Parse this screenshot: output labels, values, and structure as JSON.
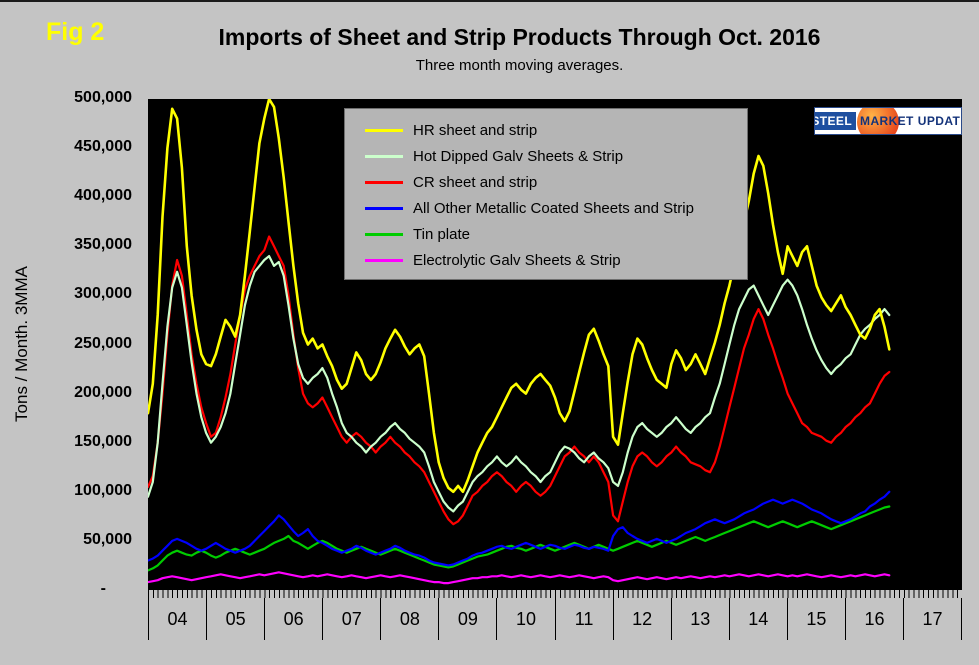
{
  "page": {
    "background": "#c4c4c4",
    "plot_background": "#000000"
  },
  "header": {
    "fig_label": "Fig 2",
    "title": "Imports of Sheet and Strip Products Through Oct. 2016",
    "subtitle": "Three month moving averages."
  },
  "logo": {
    "part1": "STEEL",
    "part2": "MARKET",
    "part3": "UPDATE"
  },
  "chart_data": {
    "type": "line",
    "title": "Imports of Sheet and Strip Products Through Oct. 2016",
    "subtitle": "Three month moving averages.",
    "ylabel": "Tons / Month. 3MMA",
    "xlabel": "",
    "ylim": [
      0,
      500000
    ],
    "y_tick_interval": 50000,
    "y_tick_labels": [
      "500,000",
      "450,000",
      "400,000",
      "350,000",
      "300,000",
      "250,000",
      "200,000",
      "150,000",
      "100,000",
      "50,000",
      "-"
    ],
    "x_start_year": 2004,
    "x_end_year": 2018,
    "x_tick_labels": [
      "04",
      "05",
      "06",
      "07",
      "08",
      "09",
      "10",
      "11",
      "12",
      "13",
      "14",
      "15",
      "16",
      "17"
    ],
    "x_frequency": "monthly",
    "x_start": "2004-01",
    "x_end": "2016-10",
    "values_unit": "thousand tons per month (3MMA), estimated from plot",
    "grid": false,
    "legend_position": "upper-left-inside",
    "series": [
      {
        "name": "HR sheet and strip",
        "color": "#ffff00",
        "values": [
          180,
          210,
          280,
          380,
          450,
          490,
          480,
          430,
          350,
          300,
          265,
          240,
          230,
          228,
          240,
          258,
          275,
          268,
          258,
          280,
          320,
          365,
          410,
          455,
          480,
          500,
          492,
          460,
          420,
          375,
          330,
          292,
          262,
          250,
          256,
          246,
          250,
          238,
          228,
          214,
          205,
          210,
          226,
          242,
          234,
          220,
          214,
          220,
          232,
          246,
          256,
          265,
          258,
          248,
          240,
          246,
          250,
          238,
          200,
          160,
          130,
          114,
          104,
          100,
          106,
          100,
          112,
          126,
          140,
          150,
          160,
          166,
          176,
          186,
          196,
          206,
          210,
          204,
          200,
          210,
          216,
          220,
          214,
          208,
          196,
          180,
          172,
          182,
          202,
          222,
          242,
          260,
          266,
          254,
          240,
          228,
          156,
          148,
          180,
          212,
          240,
          256,
          250,
          236,
          224,
          214,
          210,
          206,
          230,
          244,
          236,
          224,
          230,
          240,
          230,
          220,
          236,
          252,
          270,
          292,
          310,
          332,
          352,
          374,
          396,
          424,
          442,
          432,
          404,
          372,
          344,
          322,
          350,
          340,
          330,
          344,
          350,
          330,
          310,
          298,
          290,
          284,
          292,
          300,
          288,
          280,
          270,
          260,
          256,
          266,
          280,
          286,
          268,
          245
        ]
      },
      {
        "name": "Hot Dipped Galv Sheets & Strip",
        "color": "#ccffcc",
        "values": [
          95,
          110,
          150,
          210,
          268,
          308,
          324,
          308,
          270,
          232,
          200,
          176,
          160,
          150,
          156,
          166,
          180,
          200,
          230,
          260,
          290,
          310,
          324,
          330,
          336,
          340,
          330,
          334,
          320,
          290,
          256,
          230,
          216,
          210,
          216,
          220,
          226,
          216,
          200,
          186,
          170,
          160,
          156,
          150,
          146,
          140,
          146,
          150,
          156,
          160,
          166,
          170,
          164,
          160,
          154,
          150,
          146,
          140,
          126,
          110,
          100,
          90,
          84,
          80,
          86,
          90,
          100,
          110,
          116,
          120,
          126,
          130,
          136,
          130,
          126,
          130,
          136,
          130,
          126,
          120,
          116,
          110,
          116,
          120,
          130,
          140,
          146,
          144,
          140,
          134,
          130,
          136,
          140,
          134,
          130,
          124,
          110,
          106,
          120,
          140,
          156,
          166,
          170,
          164,
          160,
          156,
          160,
          166,
          170,
          176,
          170,
          164,
          160,
          166,
          170,
          176,
          180,
          196,
          210,
          230,
          250,
          270,
          286,
          296,
          306,
          310,
          300,
          290,
          280,
          290,
          300,
          310,
          316,
          310,
          300,
          286,
          270,
          256,
          244,
          234,
          226,
          220,
          226,
          230,
          236,
          240,
          250,
          260,
          266,
          270,
          276,
          280,
          286,
          280
        ]
      },
      {
        "name": "CR sheet and strip",
        "color": "#ff0000",
        "values": [
          105,
          116,
          150,
          200,
          260,
          310,
          336,
          320,
          280,
          240,
          210,
          186,
          170,
          156,
          160,
          176,
          196,
          220,
          250,
          280,
          306,
          320,
          330,
          340,
          346,
          360,
          350,
          340,
          330,
          300,
          260,
          226,
          200,
          190,
          186,
          190,
          196,
          186,
          176,
          166,
          156,
          150,
          156,
          160,
          156,
          150,
          146,
          140,
          146,
          150,
          156,
          150,
          146,
          140,
          136,
          130,
          126,
          120,
          110,
          100,
          90,
          80,
          72,
          67,
          70,
          76,
          86,
          96,
          100,
          106,
          110,
          116,
          120,
          116,
          110,
          106,
          100,
          106,
          110,
          106,
          100,
          96,
          100,
          106,
          116,
          126,
          136,
          140,
          146,
          140,
          136,
          130,
          136,
          130,
          120,
          110,
          76,
          70,
          90,
          110,
          126,
          136,
          140,
          136,
          130,
          126,
          130,
          136,
          140,
          146,
          140,
          136,
          130,
          128,
          126,
          122,
          120,
          130,
          146,
          166,
          186,
          206,
          226,
          246,
          260,
          276,
          286,
          276,
          260,
          246,
          230,
          216,
          200,
          190,
          180,
          170,
          166,
          160,
          158,
          156,
          152,
          150,
          156,
          160,
          166,
          170,
          176,
          180,
          186,
          190,
          200,
          210,
          218,
          222
        ]
      },
      {
        "name": "All Other Metallic Coated Sheets and Strip",
        "color": "#0000ff",
        "values": [
          30,
          32,
          35,
          40,
          45,
          50,
          52,
          50,
          48,
          45,
          42,
          40,
          42,
          45,
          48,
          45,
          42,
          40,
          38,
          40,
          42,
          45,
          50,
          55,
          60,
          65,
          70,
          76,
          72,
          66,
          60,
          55,
          58,
          62,
          55,
          50,
          48,
          45,
          42,
          40,
          38,
          40,
          42,
          45,
          43,
          40,
          38,
          36,
          38,
          40,
          42,
          45,
          43,
          40,
          38,
          36,
          35,
          33,
          30,
          28,
          27,
          26,
          25,
          26,
          28,
          30,
          32,
          35,
          37,
          38,
          40,
          42,
          44,
          45,
          43,
          42,
          44,
          46,
          48,
          46,
          44,
          42,
          44,
          46,
          45,
          43,
          42,
          44,
          46,
          45,
          43,
          42,
          44,
          43,
          42,
          40,
          55,
          62,
          64,
          58,
          55,
          52,
          50,
          48,
          50,
          52,
          50,
          48,
          50,
          52,
          55,
          58,
          60,
          62,
          65,
          68,
          70,
          72,
          70,
          68,
          70,
          72,
          75,
          78,
          80,
          82,
          85,
          88,
          90,
          92,
          90,
          88,
          90,
          92,
          90,
          88,
          85,
          82,
          80,
          78,
          75,
          72,
          70,
          68,
          70,
          72,
          75,
          78,
          80,
          85,
          88,
          92,
          95,
          100
        ]
      },
      {
        "name": "Tin plate",
        "color": "#00cc00",
        "values": [
          20,
          22,
          25,
          30,
          35,
          38,
          40,
          38,
          36,
          35,
          38,
          40,
          38,
          35,
          33,
          35,
          38,
          40,
          42,
          40,
          38,
          36,
          38,
          40,
          42,
          45,
          48,
          50,
          52,
          55,
          50,
          48,
          45,
          42,
          45,
          48,
          50,
          48,
          45,
          42,
          40,
          38,
          40,
          42,
          44,
          42,
          40,
          38,
          36,
          38,
          40,
          42,
          40,
          38,
          36,
          34,
          32,
          30,
          28,
          26,
          25,
          24,
          23,
          24,
          26,
          28,
          30,
          32,
          34,
          35,
          36,
          38,
          40,
          42,
          44,
          45,
          43,
          42,
          40,
          42,
          44,
          46,
          44,
          42,
          40,
          42,
          44,
          46,
          48,
          46,
          44,
          42,
          44,
          46,
          44,
          42,
          40,
          42,
          44,
          46,
          48,
          50,
          48,
          46,
          44,
          46,
          48,
          50,
          48,
          46,
          48,
          50,
          52,
          54,
          52,
          50,
          52,
          54,
          56,
          58,
          60,
          62,
          64,
          66,
          68,
          70,
          68,
          66,
          64,
          66,
          68,
          70,
          68,
          66,
          64,
          66,
          68,
          70,
          68,
          66,
          64,
          62,
          64,
          66,
          68,
          70,
          72,
          74,
          76,
          78,
          80,
          82,
          84,
          85
        ]
      },
      {
        "name": "Electrolytic Galv Sheets & Strip",
        "color": "#ff00ff",
        "values": [
          8,
          9,
          10,
          12,
          13,
          14,
          13,
          12,
          11,
          10,
          11,
          12,
          13,
          14,
          15,
          16,
          15,
          14,
          13,
          12,
          13,
          14,
          15,
          16,
          15,
          16,
          17,
          18,
          17,
          16,
          15,
          14,
          13,
          14,
          15,
          14,
          15,
          16,
          15,
          14,
          13,
          14,
          15,
          14,
          13,
          12,
          13,
          14,
          15,
          14,
          13,
          14,
          15,
          14,
          13,
          12,
          11,
          10,
          9,
          8,
          8,
          7,
          7,
          8,
          9,
          10,
          11,
          12,
          12,
          13,
          13,
          14,
          14,
          15,
          14,
          13,
          14,
          15,
          14,
          13,
          14,
          15,
          14,
          13,
          14,
          15,
          14,
          13,
          14,
          15,
          14,
          13,
          12,
          13,
          14,
          13,
          10,
          9,
          10,
          11,
          12,
          13,
          12,
          11,
          12,
          13,
          12,
          11,
          12,
          13,
          12,
          13,
          14,
          13,
          12,
          13,
          14,
          13,
          14,
          15,
          14,
          15,
          16,
          15,
          14,
          15,
          16,
          15,
          14,
          15,
          16,
          15,
          14,
          15,
          14,
          15,
          16,
          15,
          14,
          13,
          14,
          15,
          14,
          13,
          14,
          15,
          14,
          15,
          16,
          15,
          14,
          15,
          16,
          15
        ]
      }
    ]
  }
}
